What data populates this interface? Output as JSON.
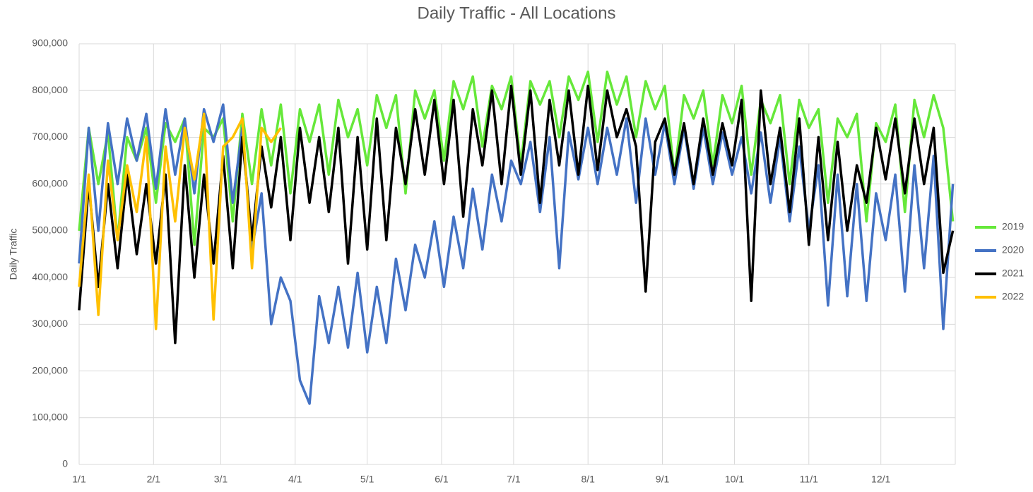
{
  "chart_data": {
    "type": "line",
    "title": "Daily Traffic - All Locations",
    "y_label": "Daily Traffic",
    "x": [
      0,
      4,
      8,
      12,
      16,
      20,
      24,
      28,
      32,
      36,
      40,
      44,
      48,
      52,
      56,
      60,
      64,
      68,
      72,
      76,
      80,
      84,
      88,
      92,
      96,
      100,
      104,
      108,
      112,
      116,
      120,
      124,
      128,
      132,
      136,
      140,
      144,
      148,
      152,
      156,
      160,
      164,
      168,
      172,
      176,
      180,
      184,
      188,
      192,
      196,
      200,
      204,
      208,
      212,
      216,
      220,
      224,
      228,
      232,
      236,
      240,
      244,
      248,
      252,
      256,
      260,
      264,
      268,
      272,
      276,
      280,
      284,
      288,
      292,
      296,
      300,
      304,
      308,
      312,
      316,
      320,
      324,
      328,
      332,
      336,
      340,
      344,
      348,
      352,
      356,
      360,
      364
    ],
    "xlim": [
      0,
      365
    ],
    "xticks": [
      {
        "value": 0,
        "label": "1/1"
      },
      {
        "value": 31,
        "label": "2/1"
      },
      {
        "value": 59,
        "label": "3/1"
      },
      {
        "value": 90,
        "label": "4/1"
      },
      {
        "value": 120,
        "label": "5/1"
      },
      {
        "value": 151,
        "label": "6/1"
      },
      {
        "value": 181,
        "label": "7/1"
      },
      {
        "value": 212,
        "label": "8/1"
      },
      {
        "value": 243,
        "label": "9/1"
      },
      {
        "value": 273,
        "label": "10/1"
      },
      {
        "value": 304,
        "label": "11/1"
      },
      {
        "value": 334,
        "label": "12/1"
      }
    ],
    "ylim": [
      0,
      900000
    ],
    "yticks": [
      0,
      {
        "value": 100000,
        "label": "100,000"
      },
      {
        "value": 200000,
        "label": "200,000"
      },
      {
        "value": 300000,
        "label": "300,000"
      },
      {
        "value": 400000,
        "label": "400,000"
      },
      {
        "value": 500000,
        "label": "500,000"
      },
      {
        "value": 600000,
        "label": "600,000"
      },
      {
        "value": 700000,
        "label": "700,000"
      },
      {
        "value": 800000,
        "label": "800,000"
      },
      {
        "value": 900000,
        "label": "900,000"
      }
    ],
    "grid": true,
    "legend": "right",
    "series": [
      {
        "name": "2019",
        "color": "#66e83a",
        "values": [
          500000,
          720000,
          600000,
          710000,
          480000,
          700000,
          650000,
          720000,
          560000,
          730000,
          690000,
          740000,
          470000,
          720000,
          700000,
          740000,
          520000,
          750000,
          600000,
          760000,
          640000,
          770000,
          580000,
          760000,
          690000,
          770000,
          620000,
          780000,
          700000,
          760000,
          640000,
          790000,
          720000,
          790000,
          580000,
          800000,
          740000,
          800000,
          650000,
          820000,
          760000,
          830000,
          680000,
          810000,
          760000,
          830000,
          640000,
          820000,
          770000,
          820000,
          700000,
          830000,
          780000,
          840000,
          690000,
          840000,
          770000,
          830000,
          700000,
          820000,
          760000,
          810000,
          620000,
          790000,
          740000,
          800000,
          640000,
          790000,
          730000,
          810000,
          620000,
          780000,
          730000,
          790000,
          600000,
          780000,
          720000,
          760000,
          560000,
          740000,
          700000,
          750000,
          520000,
          730000,
          690000,
          770000,
          540000,
          780000,
          700000,
          790000,
          720000,
          520000
        ]
      },
      {
        "name": "2020",
        "color": "#4472c4",
        "values": [
          430000,
          720000,
          500000,
          730000,
          600000,
          740000,
          650000,
          750000,
          590000,
          760000,
          620000,
          740000,
          580000,
          760000,
          690000,
          770000,
          560000,
          720000,
          460000,
          580000,
          300000,
          400000,
          350000,
          180000,
          130000,
          360000,
          260000,
          380000,
          250000,
          410000,
          240000,
          380000,
          260000,
          440000,
          330000,
          470000,
          400000,
          520000,
          380000,
          530000,
          420000,
          590000,
          460000,
          620000,
          520000,
          650000,
          600000,
          690000,
          540000,
          700000,
          420000,
          710000,
          610000,
          720000,
          600000,
          720000,
          620000,
          740000,
          560000,
          740000,
          620000,
          730000,
          600000,
          720000,
          590000,
          720000,
          600000,
          710000,
          620000,
          700000,
          580000,
          710000,
          560000,
          700000,
          520000,
          680000,
          500000,
          640000,
          340000,
          620000,
          360000,
          600000,
          350000,
          580000,
          480000,
          620000,
          370000,
          640000,
          420000,
          660000,
          290000,
          600000
        ]
      },
      {
        "name": "2021",
        "color": "#000000",
        "values": [
          330000,
          600000,
          380000,
          600000,
          420000,
          620000,
          450000,
          600000,
          430000,
          620000,
          260000,
          640000,
          400000,
          620000,
          430000,
          660000,
          420000,
          700000,
          480000,
          680000,
          550000,
          700000,
          480000,
          720000,
          560000,
          700000,
          540000,
          720000,
          430000,
          700000,
          460000,
          740000,
          480000,
          720000,
          600000,
          760000,
          620000,
          780000,
          600000,
          780000,
          530000,
          760000,
          640000,
          800000,
          600000,
          810000,
          620000,
          800000,
          560000,
          780000,
          640000,
          800000,
          620000,
          810000,
          630000,
          800000,
          700000,
          760000,
          680000,
          370000,
          690000,
          740000,
          620000,
          730000,
          600000,
          740000,
          620000,
          730000,
          640000,
          780000,
          350000,
          800000,
          600000,
          720000,
          540000,
          740000,
          470000,
          700000,
          480000,
          690000,
          500000,
          640000,
          560000,
          720000,
          610000,
          740000,
          580000,
          740000,
          600000,
          720000,
          410000,
          500000
        ]
      },
      {
        "name": "2022",
        "color": "#ffc000",
        "values": [
          380000,
          620000,
          320000,
          650000,
          480000,
          640000,
          540000,
          700000,
          290000,
          680000,
          520000,
          720000,
          610000,
          750000,
          310000,
          680000,
          700000,
          740000,
          420000,
          720000,
          690000,
          720000,
          null,
          null,
          null,
          null,
          null,
          null,
          null,
          null,
          null,
          null,
          null,
          null,
          null,
          null,
          null,
          null,
          null,
          null,
          null,
          null,
          null,
          null,
          null,
          null,
          null,
          null,
          null,
          null,
          null,
          null,
          null,
          null,
          null,
          null,
          null,
          null,
          null,
          null,
          null,
          null,
          null,
          null,
          null,
          null,
          null,
          null,
          null,
          null,
          null,
          null,
          null,
          null,
          null,
          null,
          null,
          null,
          null,
          null,
          null,
          null,
          null,
          null,
          null,
          null,
          null,
          null,
          null,
          null,
          null,
          null
        ]
      }
    ]
  }
}
